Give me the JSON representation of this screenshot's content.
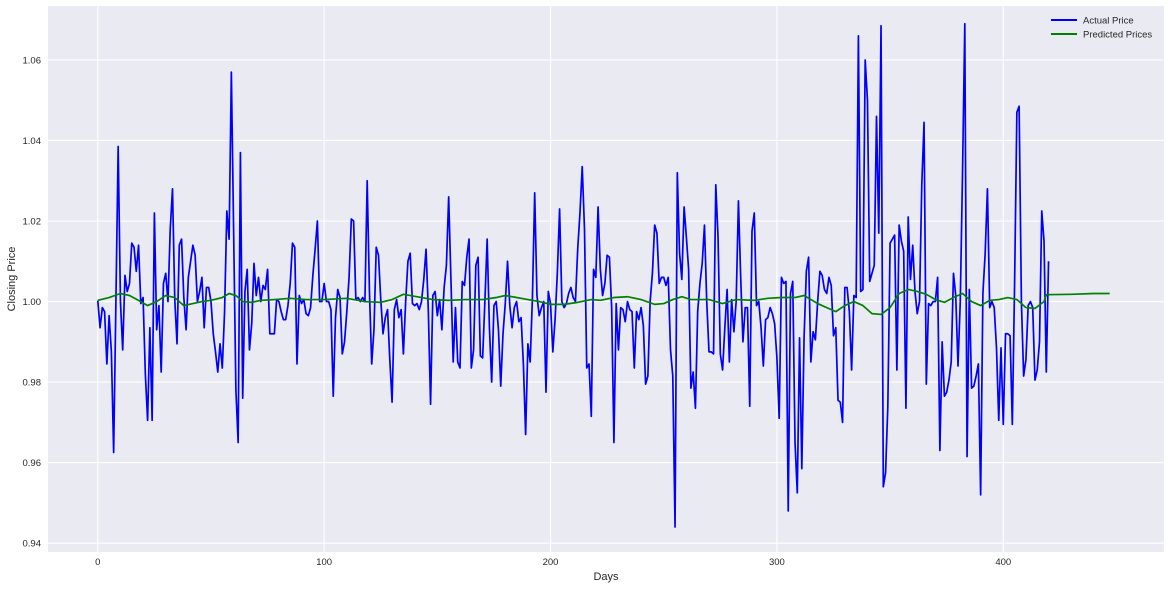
{
  "chart_data": {
    "type": "line",
    "title": "",
    "xlabel": "Days",
    "ylabel": "Closing Price",
    "xlim": [
      -22,
      471
    ],
    "ylim": [
      0.9378,
      1.0734
    ],
    "x_ticks": [
      0,
      100,
      200,
      300,
      400
    ],
    "y_ticks": [
      0.94,
      0.96,
      0.98,
      1.0,
      1.02,
      1.04,
      1.06
    ],
    "grid": true,
    "legend_position": "top-right",
    "colors": {
      "background": "#eaeaf2",
      "grid": "#ffffff",
      "actual": "#0000ff",
      "predicted": "#008000"
    },
    "series": [
      {
        "name": "Actual Price",
        "color": "#0000ff",
        "x_start": 0,
        "values": [
          1.0002,
          0.9935,
          0.9985,
          0.9975,
          0.9845,
          0.9965,
          0.9875,
          0.9625,
          1.0,
          1.0385,
          1.0,
          0.988,
          1.0065,
          1.0025,
          1.0045,
          1.0145,
          1.0135,
          1.0075,
          1.014,
          0.9995,
          1.001,
          0.982,
          0.9705,
          0.9935,
          0.9705,
          1.022,
          0.993,
          0.999,
          0.9825,
          1.0045,
          1.007,
          1.0,
          1.018,
          1.028,
          1.0005,
          0.9895,
          1.014,
          1.0155,
          1.001,
          0.993,
          1.006,
          1.01,
          1.014,
          1.0115,
          1.0,
          1.0025,
          1.006,
          0.9935,
          1.0035,
          1.0035,
          1.0,
          0.992,
          0.9875,
          0.9825,
          0.9895,
          0.9835,
          0.9975,
          1.0225,
          1.0155,
          1.057,
          1.0175,
          0.978,
          0.965,
          1.037,
          0.976,
          1.0025,
          1.008,
          0.988,
          0.9945,
          1.0095,
          1.0015,
          1.006,
          1.0,
          1.004,
          1.003,
          1.008,
          0.992,
          0.992,
          0.992,
          1.0005,
          1.0,
          0.9975,
          0.9955,
          0.9955,
          0.999,
          1.0045,
          1.0145,
          1.0135,
          0.9845,
          1.0015,
          0.9995,
          1.0005,
          0.997,
          0.9965,
          0.9985,
          1.0065,
          1.013,
          1.02,
          1.0,
          1.0,
          1.0045,
          1.0,
          1.0,
          0.998,
          0.9765,
          0.996,
          1.003,
          1.001,
          0.987,
          0.99,
          0.9975,
          1.006,
          1.0205,
          1.02,
          1.0005,
          1.001,
          1.0,
          1.001,
          1.0,
          1.03,
          1.0025,
          0.9845,
          0.993,
          1.0135,
          1.0115,
          1.0005,
          0.992,
          0.996,
          0.998,
          0.9855,
          0.975,
          0.998,
          1.0005,
          0.996,
          0.998,
          0.987,
          1.0,
          1.01,
          1.012,
          0.9995,
          0.999,
          0.9995,
          0.998,
          1.0,
          1.0055,
          1.013,
          0.998,
          0.9745,
          1.0015,
          1.0025,
          0.9965,
          1.0005,
          0.993,
          1.0035,
          1.009,
          1.026,
          1.0055,
          0.985,
          0.9985,
          0.985,
          0.9835,
          1.005,
          1.004,
          1.011,
          1.0155,
          0.9835,
          0.988,
          1.009,
          1.011,
          0.9865,
          0.986,
          1.0,
          1.0155,
          0.9935,
          0.98,
          0.999,
          1.0,
          0.993,
          0.979,
          0.992,
          0.9995,
          1.01,
          0.999,
          0.9935,
          0.9985,
          1.0,
          0.995,
          0.996,
          0.9845,
          0.967,
          0.9895,
          0.985,
          1.001,
          1.027,
          1.0015,
          0.9965,
          0.9985,
          1.0,
          0.9775,
          1.0025,
          0.9995,
          0.9875,
          0.9955,
          1.007,
          1.023,
          1.0,
          0.9985,
          0.9995,
          1.002,
          1.0035,
          1.001,
          1.0,
          1.013,
          1.022,
          1.0335,
          1.018,
          0.9835,
          0.9845,
          0.9715,
          1.008,
          1.006,
          1.0235,
          1.008,
          1.0015,
          1.0045,
          1.0115,
          1.011,
          0.9985,
          0.965,
          0.9995,
          0.988,
          0.9985,
          0.998,
          0.995,
          1.0,
          0.998,
          0.9975,
          0.9835,
          0.9975,
          0.9955,
          0.9985,
          0.994,
          0.9795,
          0.9815,
          1.0,
          1.007,
          1.019,
          1.017,
          1.0045,
          1.006,
          1.006,
          1.004,
          1.006,
          0.988,
          0.9815,
          0.944,
          1.032,
          1.012,
          1.0055,
          1.0235,
          1.016,
          1.008,
          0.9785,
          0.9825,
          0.9735,
          0.9975,
          1.0045,
          1.0095,
          1.019,
          1.0,
          0.9875,
          0.9875,
          0.987,
          1.029,
          1.016,
          0.987,
          0.983,
          0.9935,
          1.003,
          0.985,
          1.0005,
          0.9925,
          1.0,
          1.025,
          1.006,
          0.99,
          0.9985,
          0.9985,
          0.974,
          1.0175,
          1.022,
          0.999,
          1.0,
          0.9935,
          0.984,
          0.9955,
          0.996,
          0.9985,
          0.997,
          0.9945,
          0.986,
          0.971,
          1.006,
          1.0045,
          1.005,
          0.948,
          1.002,
          1.005,
          0.965,
          0.9525,
          0.991,
          0.9585,
          0.991,
          1.0075,
          1.011,
          0.985,
          0.9925,
          0.9905,
          1.0,
          1.0075,
          1.0065,
          1.003,
          1.002,
          1.006,
          1.004,
          0.9915,
          0.9935,
          0.9755,
          0.975,
          0.97,
          1.0035,
          1.0035,
          0.9975,
          0.983,
          1.0015,
          1.001,
          1.066,
          1.0025,
          1.003,
          1.06,
          1.05,
          1.005,
          1.007,
          1.009,
          1.046,
          1.017,
          1.0685,
          0.954,
          0.9575,
          0.974,
          1.0145,
          1.0155,
          1.0165,
          0.983,
          1.019,
          1.015,
          1.0125,
          0.9735,
          1.021,
          1.0055,
          1.014,
          1.0025,
          0.997,
          1.0,
          1.029,
          1.0445,
          0.9795,
          0.9995,
          0.999,
          1.0,
          1.0,
          1.006,
          0.963,
          0.99,
          0.9765,
          0.9775,
          0.9805,
          0.985,
          1.007,
          1.0015,
          0.984,
          1.0,
          1.032,
          1.069,
          0.9615,
          1.003,
          0.9785,
          0.979,
          0.9815,
          0.9845,
          0.952,
          1.002,
          1.012,
          1.028,
          0.9985,
          1.0,
          0.9985,
          0.9885,
          0.9705,
          0.9885,
          0.9695,
          0.992,
          0.992,
          0.9915,
          0.9695,
          1.0045,
          1.047,
          1.0485,
          1.0,
          0.9815,
          0.9855,
          0.999,
          1.0,
          0.9985,
          0.9805,
          0.983,
          0.99,
          1.0225,
          1.015,
          0.9825,
          1.01
        ]
      },
      {
        "name": "Predicted Prices",
        "color": "#008000",
        "points": [
          [
            0,
            1.0003
          ],
          [
            5,
            1.001
          ],
          [
            10,
            1.002
          ],
          [
            14,
            1.0015
          ],
          [
            18,
            1.0003
          ],
          [
            22,
            0.999
          ],
          [
            26,
            1.0
          ],
          [
            30,
            1.0015
          ],
          [
            34,
            1.001
          ],
          [
            38,
            0.999
          ],
          [
            42,
            0.9995
          ],
          [
            46,
            1.0
          ],
          [
            50,
            1.0003
          ],
          [
            55,
            1.001
          ],
          [
            58,
            1.002
          ],
          [
            61,
            1.0015
          ],
          [
            64,
            1.0
          ],
          [
            68,
            0.9998
          ],
          [
            72,
            1.0003
          ],
          [
            78,
            1.0005
          ],
          [
            85,
            1.0008
          ],
          [
            92,
            1.0005
          ],
          [
            100,
            1.0005
          ],
          [
            110,
            1.0008
          ],
          [
            118,
            1.0
          ],
          [
            125,
            0.9998
          ],
          [
            130,
            1.0005
          ],
          [
            135,
            1.0018
          ],
          [
            140,
            1.0013
          ],
          [
            148,
            1.0005
          ],
          [
            155,
            1.0003
          ],
          [
            162,
            1.0005
          ],
          [
            170,
            1.0005
          ],
          [
            176,
            1.001
          ],
          [
            180,
            1.0015
          ],
          [
            185,
            1.001
          ],
          [
            190,
            1.0005
          ],
          [
            195,
            1.0
          ],
          [
            200,
            0.9993
          ],
          [
            206,
            0.9993
          ],
          [
            212,
            0.9998
          ],
          [
            218,
            1.0005
          ],
          [
            222,
            1.0003
          ],
          [
            228,
            1.001
          ],
          [
            234,
            1.0012
          ],
          [
            240,
            1.0005
          ],
          [
            246,
            0.9993
          ],
          [
            250,
            0.9995
          ],
          [
            254,
            1.0005
          ],
          [
            258,
            1.0012
          ],
          [
            262,
            1.0005
          ],
          [
            270,
            1.0005
          ],
          [
            276,
            0.9995
          ],
          [
            282,
            1.0005
          ],
          [
            290,
            1.0003
          ],
          [
            296,
            1.0008
          ],
          [
            302,
            1.001
          ],
          [
            308,
            1.001
          ],
          [
            312,
            1.0015
          ],
          [
            318,
            0.9995
          ],
          [
            322,
            0.9985
          ],
          [
            326,
            0.9975
          ],
          [
            330,
            0.999
          ],
          [
            334,
            1.0
          ],
          [
            338,
            0.999
          ],
          [
            342,
            0.997
          ],
          [
            346,
            0.9968
          ],
          [
            350,
            0.9985
          ],
          [
            354,
            1.002
          ],
          [
            358,
            1.003
          ],
          [
            362,
            1.0025
          ],
          [
            366,
            1.0018
          ],
          [
            370,
            1.0005
          ],
          [
            374,
            0.9998
          ],
          [
            378,
            1.001
          ],
          [
            382,
            1.002
          ],
          [
            386,
            1.0
          ],
          [
            390,
            0.999
          ],
          [
            394,
            1.0003
          ],
          [
            398,
            1.0005
          ],
          [
            402,
            1.001
          ],
          [
            406,
            1.0005
          ],
          [
            410,
            0.9985
          ],
          [
            414,
            0.9983
          ],
          [
            418,
            1.0
          ],
          [
            419,
            1.0017
          ],
          [
            430,
            1.0018
          ],
          [
            440,
            1.002
          ],
          [
            447,
            1.002
          ]
        ]
      }
    ]
  }
}
